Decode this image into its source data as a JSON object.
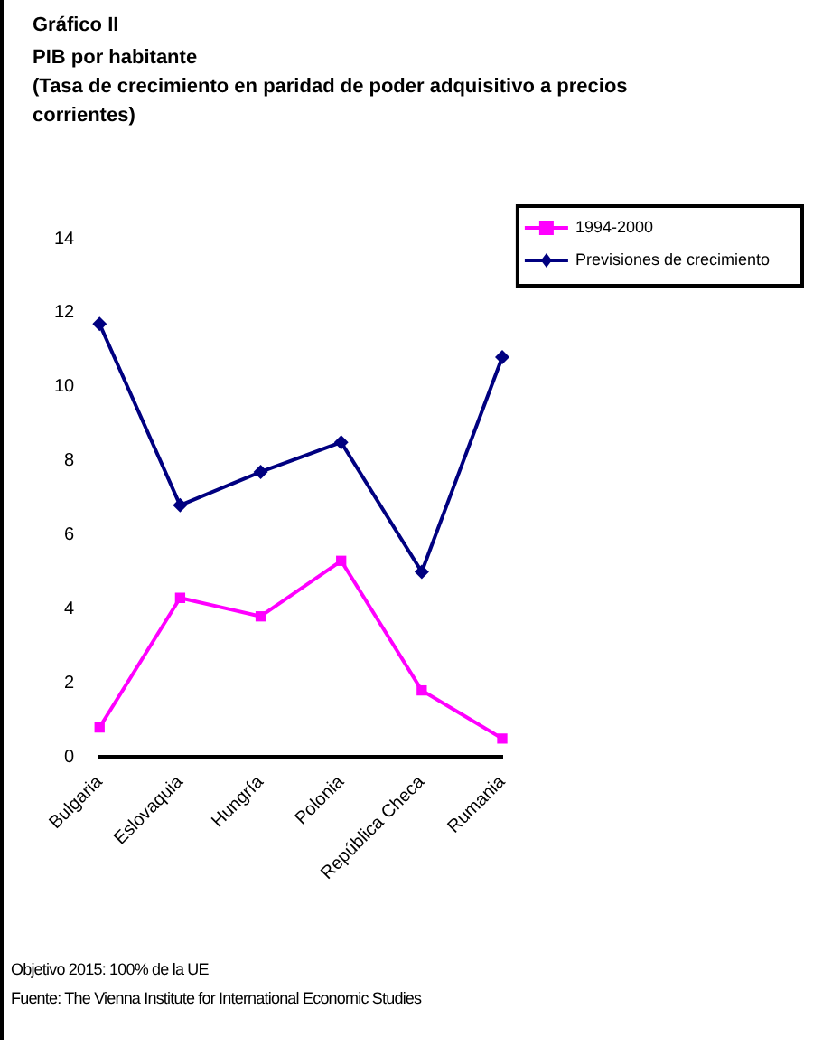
{
  "chart_data": {
    "type": "line",
    "title": "Gráfico II",
    "subtitle": "PIB por habitante\n(Tasa de crecimiento en paridad de poder adquisitivo a precios corrientes)",
    "categories": [
      "Bulgaria",
      "Eslovaquia",
      "Hungría",
      "Polonia",
      "República Checa",
      "Rumania"
    ],
    "series": [
      {
        "name": "1994-2000",
        "color": "#ff00ff",
        "marker": "square",
        "values": [
          0.8,
          4.3,
          3.8,
          5.3,
          1.8,
          0.5
        ]
      },
      {
        "name": "Previsiones de crecimiento",
        "color": "#000080",
        "marker": "diamond",
        "values": [
          11.7,
          6.8,
          7.7,
          8.5,
          5.0,
          10.8
        ]
      }
    ],
    "ylim": [
      0,
      14
    ],
    "yticks": [
      0,
      2,
      4,
      6,
      8,
      10,
      12,
      14
    ],
    "grid": false,
    "legend": "top right",
    "line_style": "solid",
    "annotations": [
      "Objetivo 2015: 100% de la UE",
      "Fuente: The Vienna Institute for International Economic Studies"
    ]
  }
}
